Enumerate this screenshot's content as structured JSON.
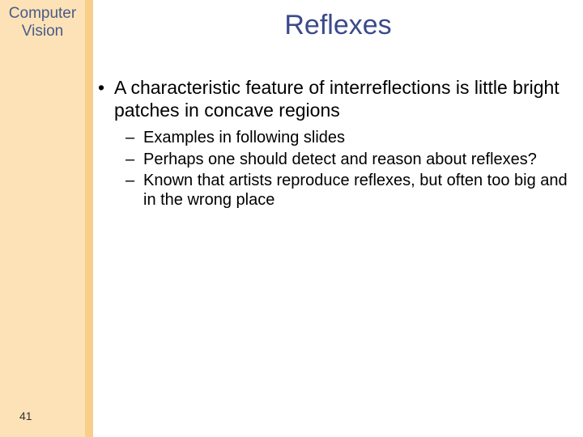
{
  "colors": {
    "sidebar_outer": "#f9ce8a",
    "sidebar_inner": "#fce2b6",
    "title_color": "#3a4a8a",
    "course_title_color": "#4a5a8a",
    "body_text": "#000000",
    "page_bg": "#ffffff"
  },
  "typography": {
    "main_title_fontsize": 34,
    "course_title_fontsize": 19,
    "bullet_main_fontsize": 23,
    "bullet_sub_fontsize": 20,
    "page_num_fontsize": 14,
    "font_family": "Verdana"
  },
  "course": {
    "line1": "Computer",
    "line2": "Vision"
  },
  "title": "Reflexes",
  "bullets": [
    {
      "text": "A characteristic feature of interreflections is little bright patches in concave regions",
      "sub": [
        "Examples in following slides",
        "Perhaps one should detect and reason about reflexes?",
        "Known that artists reproduce reflexes, but often too big and in the wrong place"
      ]
    }
  ],
  "page_number": "41"
}
